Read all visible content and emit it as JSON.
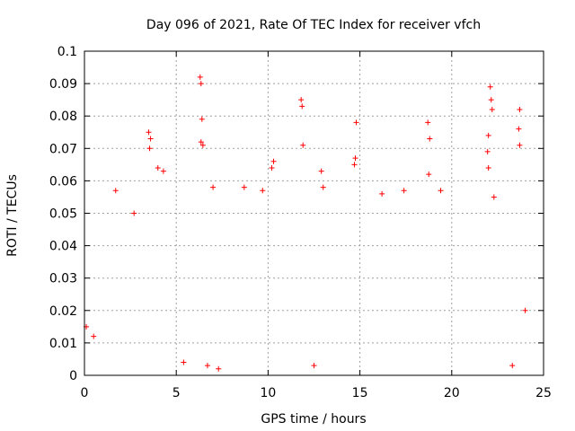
{
  "chart_data": {
    "type": "scatter",
    "title": "Day 096 of 2021, Rate Of TEC Index for receiver vfch",
    "xlabel": "GPS time / hours",
    "ylabel": "ROTI / TECUs",
    "xlim": [
      0,
      25
    ],
    "ylim": [
      0,
      0.1
    ],
    "xticks": [
      0,
      5,
      10,
      15,
      20,
      25
    ],
    "yticks": [
      0,
      0.01,
      0.02,
      0.03,
      0.04,
      0.05,
      0.06,
      0.07,
      0.08,
      0.09,
      0.1
    ],
    "grid": true,
    "marker": "plus",
    "color": "#ff0000",
    "series": [
      {
        "name": "ROTI",
        "points": [
          [
            3.5,
            0.075
          ],
          [
            3.6,
            0.073
          ],
          [
            3.55,
            0.07
          ],
          [
            4.3,
            0.063
          ],
          [
            4.0,
            0.064
          ],
          [
            6.3,
            0.092
          ],
          [
            6.35,
            0.09
          ],
          [
            6.4,
            0.079
          ],
          [
            6.35,
            0.072
          ],
          [
            6.45,
            0.071
          ],
          [
            10.3,
            0.066
          ],
          [
            10.2,
            0.064
          ],
          [
            11.8,
            0.085
          ],
          [
            11.85,
            0.083
          ],
          [
            11.9,
            0.071
          ],
          [
            12.9,
            0.063
          ],
          [
            14.8,
            0.078
          ],
          [
            14.75,
            0.067
          ],
          [
            14.7,
            0.065
          ],
          [
            18.7,
            0.078
          ],
          [
            18.8,
            0.073
          ],
          [
            18.75,
            0.062
          ],
          [
            22.1,
            0.089
          ],
          [
            22.15,
            0.085
          ],
          [
            22.2,
            0.082
          ],
          [
            22.0,
            0.074
          ],
          [
            21.95,
            0.069
          ],
          [
            22.0,
            0.064
          ],
          [
            23.7,
            0.082
          ],
          [
            23.65,
            0.076
          ],
          [
            23.7,
            0.071
          ],
          [
            1.7,
            0.057
          ],
          [
            2.7,
            0.05
          ],
          [
            7.0,
            0.058
          ],
          [
            8.7,
            0.058
          ],
          [
            9.7,
            0.057
          ],
          [
            13.0,
            0.058
          ],
          [
            16.2,
            0.056
          ],
          [
            17.4,
            0.057
          ],
          [
            19.4,
            0.057
          ],
          [
            22.3,
            0.055
          ],
          [
            6.7,
            0.003
          ],
          [
            7.3,
            0.002
          ],
          [
            5.4,
            0.004
          ],
          [
            12.5,
            0.003
          ],
          [
            23.3,
            0.003
          ],
          [
            0.1,
            0.015
          ],
          [
            0.5,
            0.012
          ],
          [
            24.0,
            0.02
          ]
        ]
      }
    ]
  }
}
